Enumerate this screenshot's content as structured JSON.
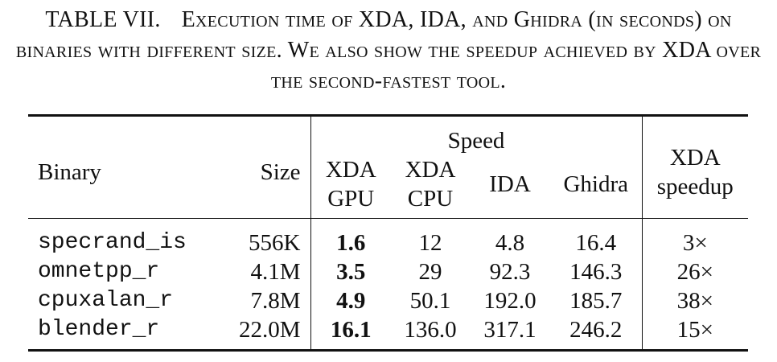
{
  "caption": {
    "label": "TABLE VII.",
    "text": "Execution time of XDA, IDA, and Ghidra (in seconds) on binaries with different size. We also show the speedup achieved by XDA over the second-fastest tool."
  },
  "table": {
    "group_header": "Speed",
    "columns": [
      [
        "Binary"
      ],
      [
        "Size"
      ],
      [
        "XDA",
        "GPU"
      ],
      [
        "XDA",
        "CPU"
      ],
      [
        "IDA"
      ],
      [
        "Ghidra"
      ],
      [
        "XDA",
        "speedup"
      ]
    ],
    "rows": [
      [
        "specrand_is",
        "556K",
        "1.6",
        "12",
        "4.8",
        "16.4",
        "3×"
      ],
      [
        "omnetpp_r",
        "4.1M",
        "3.5",
        "29",
        "92.3",
        "146.3",
        "26×"
      ],
      [
        "cpuxalan_r",
        "7.8M",
        "4.9",
        "50.1",
        "192.0",
        "185.7",
        "38×"
      ],
      [
        "blender_r",
        "22.0M",
        "16.1",
        "136.0",
        "317.1",
        "246.2",
        "15×"
      ]
    ]
  }
}
